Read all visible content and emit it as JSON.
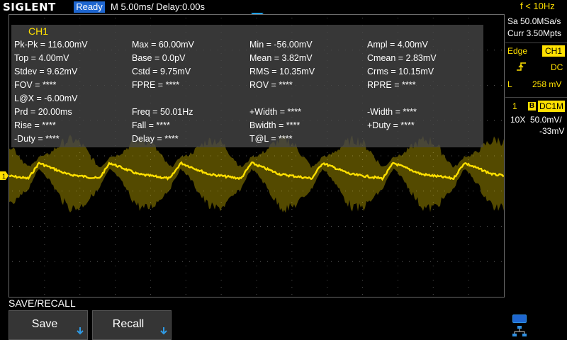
{
  "header": {
    "brand": "SIGLENT",
    "status": "Ready",
    "timebase": "M 5.00ms/ Delay:0.00s",
    "trigger_freq": "f < 10Hz"
  },
  "measurements": {
    "title": "CH1",
    "rows": [
      [
        "Pk-Pk = 116.00mV",
        "Max = 60.00mV",
        "Min = -56.00mV",
        "Ampl = 4.00mV"
      ],
      [
        "Top = 4.00mV",
        "Base = 0.0pV",
        "Mean = 3.82mV",
        "Cmean = 2.83mV"
      ],
      [
        "Stdev = 9.62mV",
        "Cstd = 9.75mV",
        "RMS = 10.35mV",
        "Crms = 10.15mV"
      ],
      [
        "FOV = ****",
        "FPRE = ****",
        "ROV = ****",
        "RPRE = ****"
      ],
      [
        "L@X = -6.00mV",
        "",
        "",
        ""
      ],
      [
        "Prd = 20.00ms",
        "Freq = 50.01Hz",
        "+Width = ****",
        "-Width = ****"
      ],
      [
        "Rise = ****",
        "Fall = ****",
        "Bwidth = ****",
        "+Duty = ****"
      ],
      [
        "-Duty = ****",
        "Delay = ****",
        "T@L = ****",
        ""
      ]
    ]
  },
  "right_panel": {
    "sample_rate": "Sa 50.0MSa/s",
    "memory_depth": "Curr 3.50Mpts",
    "trigger_type": "Edge",
    "trigger_source": "CH1",
    "trigger_coupling": "DC",
    "level_label": "L",
    "trigger_level": "258 mV",
    "channel_number": "1",
    "bandwidth_badge": "B",
    "channel_coupling": "DC1M",
    "probe": "10X",
    "volts_per_div": "50.0mV/",
    "offset": "-33mV"
  },
  "channel_marker": "1",
  "menu": {
    "title": "SAVE/RECALL",
    "buttons": [
      "Save",
      "Recall"
    ]
  },
  "colors": {
    "ch1": "#ffe000",
    "ready": "#1e66d0",
    "trigger_marker": "#1ea0e6",
    "overlay": "#464646"
  },
  "icons": {
    "trigger_position": "triangle-down-icon",
    "trigger_level": "triangle-left-icon",
    "edge": "rising-edge-icon",
    "usb": "usb-icon",
    "network": "network-icon",
    "softkey_arrow": "arrow-down-icon"
  }
}
